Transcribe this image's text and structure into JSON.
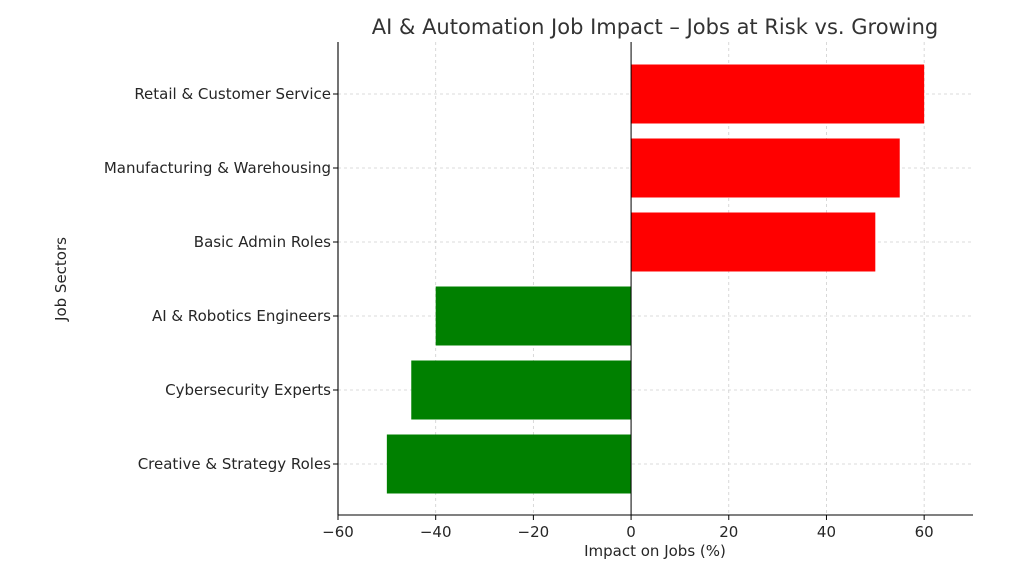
{
  "chart_data": {
    "type": "bar",
    "orientation": "horizontal",
    "title": "AI & Automation Job Impact – Jobs at Risk vs. Growing",
    "xlabel": "Impact on Jobs (%)",
    "ylabel": "Job Sectors",
    "categories": [
      "Retail & Customer Service",
      "Manufacturing & Warehousing",
      "Basic Admin Roles",
      "AI & Robotics Engineers",
      "Cybersecurity Experts",
      "Creative & Strategy Roles"
    ],
    "values": [
      60,
      55,
      50,
      -40,
      -45,
      -50
    ],
    "bar_colors": [
      "#ff0000",
      "#ff0000",
      "#ff0000",
      "#008000",
      "#008000",
      "#008000"
    ],
    "xlim": [
      -60,
      70
    ],
    "xticks": [
      -60,
      -40,
      -20,
      0,
      20,
      40,
      60
    ],
    "xtick_labels": [
      "−60",
      "−40",
      "−20",
      "0",
      "20",
      "40",
      "60"
    ],
    "grid": true
  }
}
